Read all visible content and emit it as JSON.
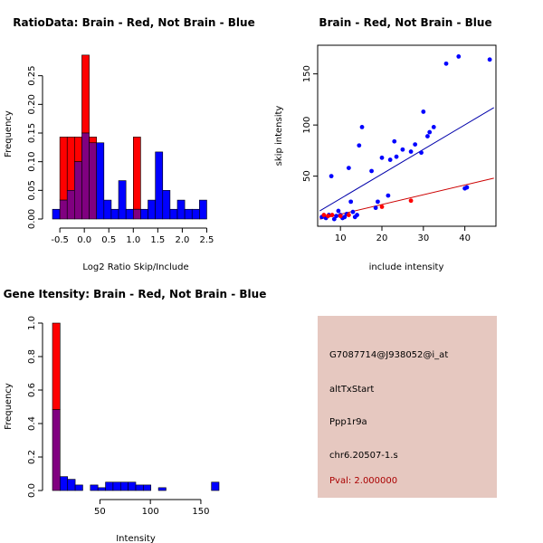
{
  "colors": {
    "red": "#ff0000",
    "blue": "#0000ff",
    "overlap": "#800080",
    "red_line": "#cc0000",
    "blue_line": "#0000aa",
    "info_bg": "#e6c8c0",
    "pval": "#aa0000"
  },
  "chart_data": [
    {
      "id": "ratio_hist",
      "type": "bar",
      "title": "RatioData: Brain - Red, Not Brain - Blue",
      "xlabel": "Log2 Ratio Skip/Include",
      "ylabel": "Frequency",
      "xlim": [
        -0.65,
        2.75
      ],
      "ylim": [
        0,
        0.3
      ],
      "xticks": [
        -0.5,
        0.0,
        0.5,
        1.0,
        1.5,
        2.0,
        2.5
      ],
      "xtick_labels": [
        "-0.5",
        "0.0",
        "0.5",
        "1.0",
        "1.5",
        "2.0",
        "2.5"
      ],
      "yticks": [
        0.0,
        0.05,
        0.1,
        0.15,
        0.2,
        0.25
      ],
      "ytick_labels": [
        "0.00",
        "0.05",
        "0.10",
        "0.15",
        "0.20",
        "0.25"
      ],
      "bin_width": 0.15,
      "series": [
        {
          "name": "Not Brain",
          "color": "blue",
          "bins": [
            [
              -0.65,
              0.017
            ],
            [
              -0.5,
              0.033
            ],
            [
              -0.35,
              0.05
            ],
            [
              -0.2,
              0.1
            ],
            [
              -0.05,
              0.15
            ],
            [
              0.1,
              0.133
            ],
            [
              0.25,
              0.133
            ],
            [
              0.4,
              0.033
            ],
            [
              0.55,
              0.017
            ],
            [
              0.7,
              0.067
            ],
            [
              0.85,
              0.017
            ],
            [
              1.0,
              0.017
            ],
            [
              1.15,
              0.017
            ],
            [
              1.3,
              0.033
            ],
            [
              1.45,
              0.117
            ],
            [
              1.6,
              0.05
            ],
            [
              1.75,
              0.017
            ],
            [
              1.9,
              0.033
            ],
            [
              2.05,
              0.017
            ],
            [
              2.2,
              0.017
            ],
            [
              2.35,
              0.033
            ]
          ]
        },
        {
          "name": "Brain",
          "color": "red",
          "bins": [
            [
              -0.5,
              0.143
            ],
            [
              -0.35,
              0.143
            ],
            [
              -0.2,
              0.143
            ],
            [
              -0.05,
              0.286
            ],
            [
              0.1,
              0.143
            ],
            [
              1.0,
              0.143
            ]
          ]
        }
      ]
    },
    {
      "id": "scatter",
      "type": "scatter",
      "title": "Brain - Red, Not Brain - Blue",
      "xlabel": "include intensity",
      "ylabel": "skip intensity",
      "xlim": [
        4.5,
        47.5
      ],
      "ylim": [
        1,
        178
      ],
      "xticks": [
        10,
        20,
        30,
        40
      ],
      "xtick_labels": [
        "10",
        "20",
        "30",
        "40"
      ],
      "yticks": [
        50,
        100,
        150
      ],
      "ytick_labels": [
        "50",
        "100",
        "150"
      ],
      "series": [
        {
          "name": "Not Brain",
          "color": "blue",
          "points": [
            [
              5.5,
              10
            ],
            [
              6.5,
              9
            ],
            [
              7.2,
              12
            ],
            [
              7.8,
              50
            ],
            [
              8.5,
              8
            ],
            [
              9,
              11
            ],
            [
              9.5,
              16
            ],
            [
              10,
              12
            ],
            [
              10.5,
              9
            ],
            [
              11,
              10
            ],
            [
              11.5,
              13
            ],
            [
              12,
              58
            ],
            [
              12.5,
              25
            ],
            [
              13,
              15
            ],
            [
              13.5,
              10
            ],
            [
              14,
              12
            ],
            [
              14.5,
              80
            ],
            [
              15.2,
              98
            ],
            [
              17.5,
              55
            ],
            [
              18.5,
              19
            ],
            [
              19,
              25
            ],
            [
              20,
              68
            ],
            [
              21.5,
              31
            ],
            [
              22,
              66
            ],
            [
              23,
              84
            ],
            [
              23.5,
              69
            ],
            [
              25,
              76
            ],
            [
              27,
              74
            ],
            [
              28,
              81
            ],
            [
              29.5,
              73
            ],
            [
              30,
              113
            ],
            [
              31,
              89
            ],
            [
              31.5,
              93
            ],
            [
              32.5,
              98
            ],
            [
              35.5,
              160
            ],
            [
              38.5,
              167
            ],
            [
              40,
              38
            ],
            [
              40.5,
              39
            ],
            [
              46,
              164
            ]
          ],
          "fit": [
            [
              5,
              16
            ],
            [
              47,
              117
            ]
          ]
        },
        {
          "name": "Brain",
          "color": "red",
          "points": [
            [
              6,
              12
            ],
            [
              7,
              11
            ],
            [
              8,
              12
            ],
            [
              10,
              11
            ],
            [
              12,
              12
            ],
            [
              20,
              20
            ],
            [
              27,
              26
            ]
          ],
          "fit": [
            [
              5,
              8
            ],
            [
              47,
              48
            ]
          ]
        }
      ]
    },
    {
      "id": "intensity_hist",
      "type": "bar",
      "title": "Gene Itensity: Brain - Red, Not Brain - Blue",
      "xlabel": "Intensity",
      "ylabel": "Frequency",
      "xlim": [
        3,
        168
      ],
      "ylim": [
        0,
        1.0
      ],
      "xticks": [
        50,
        100,
        150
      ],
      "xtick_labels": [
        "50",
        "100",
        "150"
      ],
      "yticks": [
        0.0,
        0.2,
        0.4,
        0.6,
        0.8,
        1.0
      ],
      "ytick_labels": [
        "0.0",
        "0.2",
        "0.4",
        "0.6",
        "0.8",
        "1.0"
      ],
      "bin_width": 7.5,
      "series": [
        {
          "name": "Not Brain",
          "color": "blue",
          "bins": [
            [
              3,
              0.483
            ],
            [
              10.5,
              0.083
            ],
            [
              18,
              0.067
            ],
            [
              25.5,
              0.033
            ],
            [
              33,
              0
            ],
            [
              40.5,
              0.033
            ],
            [
              48,
              0.017
            ],
            [
              55.5,
              0.05
            ],
            [
              63,
              0.05
            ],
            [
              70.5,
              0.05
            ],
            [
              78,
              0.05
            ],
            [
              85.5,
              0.033
            ],
            [
              93,
              0.033
            ],
            [
              100.5,
              0
            ],
            [
              108,
              0.017
            ],
            [
              115.5,
              0
            ],
            [
              123,
              0
            ],
            [
              130.5,
              0
            ],
            [
              138,
              0
            ],
            [
              145.5,
              0
            ],
            [
              153,
              0
            ],
            [
              160.5,
              0.05
            ]
          ]
        },
        {
          "name": "Brain",
          "color": "red",
          "bins": [
            [
              3,
              1.0
            ]
          ]
        }
      ]
    }
  ],
  "info_panel": {
    "probe_id": "G7087714@J938052@i_at",
    "event_type": "altTxStart",
    "gene": "Ppp1r9a",
    "event_id": "chr6.20507-1.s",
    "pval": "Pval: 2.000000"
  }
}
